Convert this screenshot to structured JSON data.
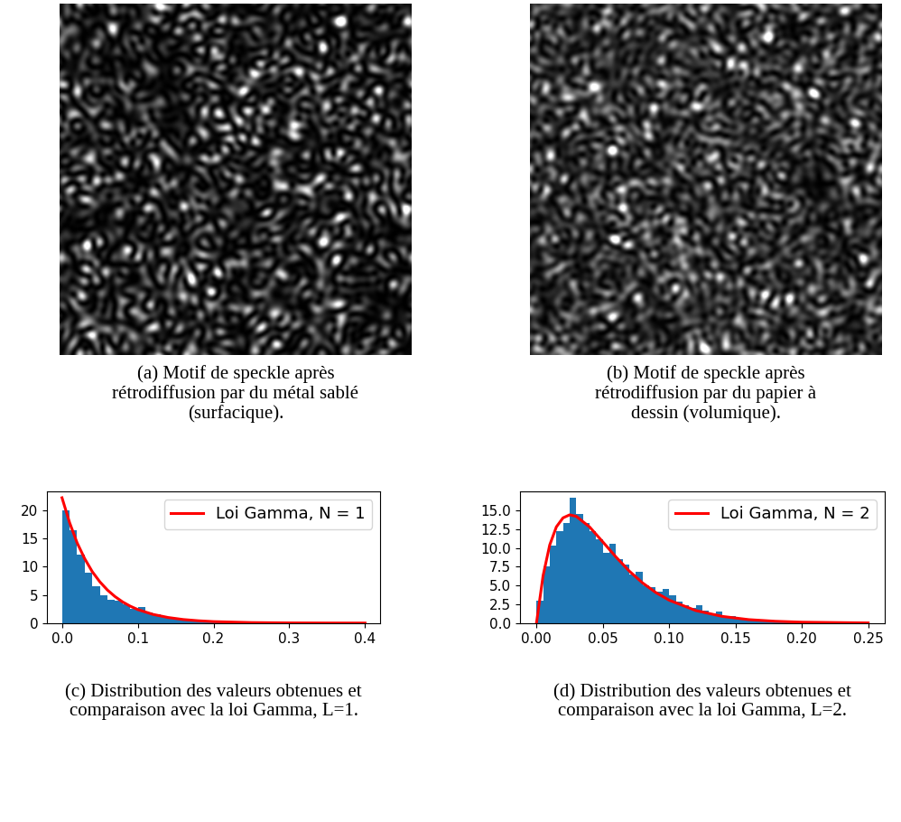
{
  "chart_data": [
    {
      "type": "image",
      "caption": "(a) Motif de speckle après\nrétrodiffusion par du métal sablé\n(surfacique)."
    },
    {
      "type": "image",
      "caption": "(b) Motif de speckle après\nrétrodiffusion par du papier à\ndessin (volumique)."
    },
    {
      "type": "histogram",
      "caption": "(c) Distribution des valeurs obtenues et\ncomparaison avec la loi Gamma, L=1.",
      "color": "#1f77b4",
      "bins": [
        0.0,
        0.01,
        0.02,
        0.03,
        0.04,
        0.05,
        0.06,
        0.07,
        0.08,
        0.09,
        0.1,
        0.11,
        0.12,
        0.13,
        0.14,
        0.15,
        0.16,
        0.17,
        0.18,
        0.19,
        0.2,
        0.21,
        0.22,
        0.23,
        0.24,
        0.25,
        0.26,
        0.27,
        0.28,
        0.29,
        0.3,
        0.31,
        0.32,
        0.33,
        0.34,
        0.35,
        0.36,
        0.37,
        0.38,
        0.39,
        0.4
      ],
      "counts": [
        20.0,
        16.5,
        12.2,
        9.0,
        6.6,
        5.0,
        4.2,
        4.0,
        3.3,
        2.6,
        2.8,
        1.9,
        1.5,
        1.2,
        1.0,
        0.8,
        0.65,
        0.55,
        0.4,
        0.35,
        0.3,
        0.22,
        0.18,
        0.15,
        0.12,
        0.1,
        0.08,
        0.06,
        0.05,
        0.04,
        0.03,
        0.03,
        0.02,
        0.02,
        0.01,
        0.01,
        0.01,
        0.01,
        0.0,
        0.01
      ],
      "series": [
        {
          "name": "Loi Gamma, N = 1",
          "type": "line",
          "color": "#ff0000",
          "x": [
            0.0,
            0.01,
            0.02,
            0.03,
            0.04,
            0.05,
            0.06,
            0.07,
            0.08,
            0.09,
            0.1,
            0.12,
            0.14,
            0.16,
            0.18,
            0.2,
            0.25,
            0.3,
            0.35,
            0.4
          ],
          "values": [
            22.2,
            17.8,
            14.2,
            11.4,
            9.1,
            7.3,
            5.85,
            4.69,
            3.75,
            3.0,
            2.4,
            1.54,
            0.99,
            0.63,
            0.41,
            0.26,
            0.09,
            0.03,
            0.01,
            0.003
          ]
        }
      ],
      "legend": "upper right",
      "xlim": [
        -0.02,
        0.42
      ],
      "ylim": [
        0,
        23.3
      ],
      "xticks": [
        {
          "value": 0.0,
          "label": "0.0"
        },
        {
          "value": 0.1,
          "label": "0.1"
        },
        {
          "value": 0.2,
          "label": "0.2"
        },
        {
          "value": 0.3,
          "label": "0.3"
        },
        {
          "value": 0.4,
          "label": "0.4"
        }
      ],
      "yticks": [
        0,
        5,
        10,
        15,
        20
      ]
    },
    {
      "type": "histogram",
      "caption": "(d) Distribution des valeurs obtenues et\ncomparaison avec la loi Gamma, L=2.",
      "color": "#1f77b4",
      "bins": [
        0.0,
        0.005,
        0.01,
        0.015,
        0.02,
        0.025,
        0.03,
        0.035,
        0.04,
        0.045,
        0.05,
        0.055,
        0.06,
        0.065,
        0.07,
        0.075,
        0.08,
        0.085,
        0.09,
        0.095,
        0.1,
        0.105,
        0.11,
        0.115,
        0.12,
        0.125,
        0.13,
        0.135,
        0.14,
        0.145,
        0.15,
        0.155,
        0.16,
        0.165,
        0.17,
        0.175,
        0.18,
        0.185,
        0.19,
        0.195,
        0.2,
        0.205,
        0.21,
        0.215,
        0.22,
        0.225,
        0.23,
        0.235,
        0.24,
        0.245,
        0.25
      ],
      "counts": [
        3.0,
        7.5,
        10.3,
        12.2,
        13.3,
        16.7,
        14.5,
        13.3,
        12.2,
        11.2,
        9.4,
        10.5,
        8.5,
        7.8,
        6.5,
        6.8,
        5.0,
        4.8,
        4.2,
        4.6,
        3.7,
        2.9,
        2.4,
        2.0,
        2.4,
        1.7,
        1.3,
        1.5,
        0.8,
        0.9,
        0.7,
        0.5,
        0.4,
        0.35,
        0.3,
        0.2,
        0.15,
        0.1,
        0.1,
        0.05,
        0.05,
        0.0,
        0.0,
        0.0,
        0.0,
        0.0,
        0.0,
        0.0,
        0.0,
        0.0
      ],
      "series": [
        {
          "name": "Loi Gamma, N = 2",
          "type": "line",
          "color": "#ff0000",
          "x": [
            0.0,
            0.005,
            0.01,
            0.015,
            0.02,
            0.025,
            0.03,
            0.04,
            0.05,
            0.06,
            0.07,
            0.08,
            0.09,
            0.1,
            0.12,
            0.14,
            0.16,
            0.18,
            0.2,
            0.25
          ],
          "values": [
            0.0,
            6.32,
            10.4,
            12.8,
            14.0,
            14.4,
            14.2,
            12.8,
            10.8,
            8.78,
            6.91,
            5.34,
            4.06,
            3.05,
            1.67,
            0.89,
            0.46,
            0.24,
            0.12,
            0.02
          ]
        }
      ],
      "legend": "upper right",
      "xlim": [
        -0.0125,
        0.2625
      ],
      "ylim": [
        0,
        17.5
      ],
      "xticks": [
        {
          "value": 0.0,
          "label": "0.00"
        },
        {
          "value": 0.05,
          "label": "0.05"
        },
        {
          "value": 0.1,
          "label": "0.10"
        },
        {
          "value": 0.15,
          "label": "0.15"
        },
        {
          "value": 0.2,
          "label": "0.20"
        },
        {
          "value": 0.25,
          "label": "0.25"
        }
      ],
      "yticks": [
        {
          "value": 0,
          "label": "0.0"
        },
        {
          "value": 2.5,
          "label": "2.5"
        },
        {
          "value": 5,
          "label": "5.0"
        },
        {
          "value": 7.5,
          "label": "7.5"
        },
        {
          "value": 10,
          "label": "10.0"
        },
        {
          "value": 12.5,
          "label": "12.5"
        },
        {
          "value": 15,
          "label": "15.0"
        }
      ]
    }
  ]
}
